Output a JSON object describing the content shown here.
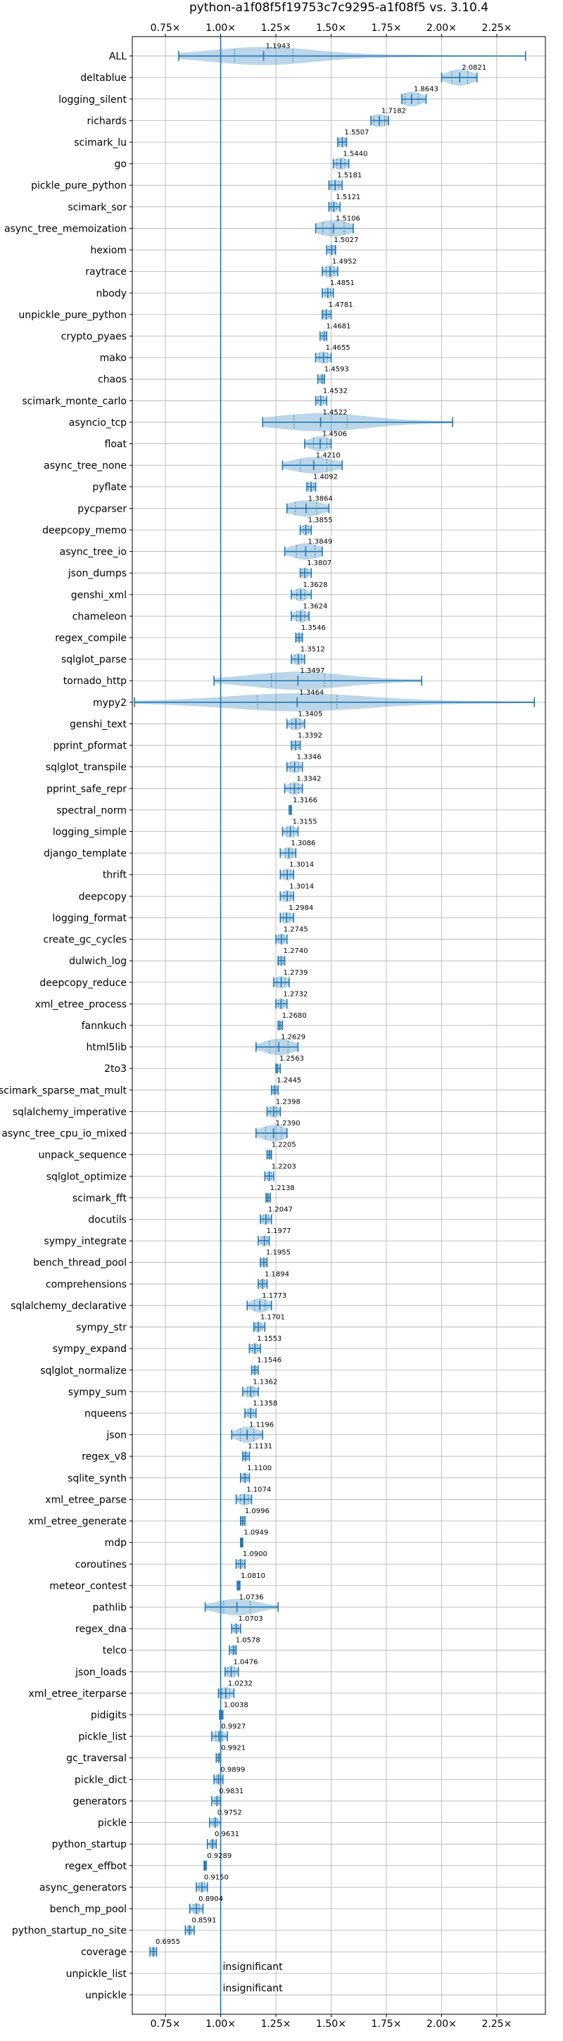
{
  "chart_data": {
    "type": "violin",
    "title": "python-a1f08f5f19753c7c9295-a1f08f5 vs. 3.10.4",
    "xlim": [
      0.6,
      2.47
    ],
    "reference_x": 1.0,
    "xticks": [
      0.75,
      1.0,
      1.25,
      1.5,
      1.75,
      2.0,
      2.25
    ],
    "xtick_labels": [
      "0.75×",
      "1.00×",
      "1.25×",
      "1.50×",
      "1.75×",
      "2.00×",
      "2.25×"
    ],
    "grid": true,
    "insignificant_label": "insignificant",
    "benchmarks": [
      {
        "name": "ALL",
        "value": 1.1943,
        "value_label": "1.1943",
        "min": 0.81,
        "max": 2.38,
        "spread": 0.22,
        "wide": true
      },
      {
        "name": "deltablue",
        "value": 2.0821,
        "value_label": "2.0821",
        "min": 2.0,
        "max": 2.16,
        "spread": 0.06
      },
      {
        "name": "logging_silent",
        "value": 1.8643,
        "value_label": "1.8643",
        "min": 1.82,
        "max": 1.93,
        "spread": 0.05
      },
      {
        "name": "richards",
        "value": 1.7182,
        "value_label": "1.7182",
        "min": 1.68,
        "max": 1.76,
        "spread": 0.04
      },
      {
        "name": "scimark_lu",
        "value": 1.5507,
        "value_label": "1.5507",
        "min": 1.53,
        "max": 1.57,
        "spread": 0.02
      },
      {
        "name": "go",
        "value": 1.544,
        "value_label": "1.5440",
        "min": 1.51,
        "max": 1.58,
        "spread": 0.03
      },
      {
        "name": "pickle_pure_python",
        "value": 1.5181,
        "value_label": "1.5181",
        "min": 1.49,
        "max": 1.55,
        "spread": 0.03
      },
      {
        "name": "scimark_sor",
        "value": 1.5121,
        "value_label": "1.5121",
        "min": 1.49,
        "max": 1.54,
        "spread": 0.02
      },
      {
        "name": "async_tree_memoization",
        "value": 1.5106,
        "value_label": "1.5106",
        "min": 1.43,
        "max": 1.6,
        "spread": 0.08
      },
      {
        "name": "hexiom",
        "value": 1.5027,
        "value_label": "1.5027",
        "min": 1.48,
        "max": 1.52,
        "spread": 0.02
      },
      {
        "name": "raytrace",
        "value": 1.4952,
        "value_label": "1.4952",
        "min": 1.46,
        "max": 1.53,
        "spread": 0.03
      },
      {
        "name": "nbody",
        "value": 1.4851,
        "value_label": "1.4851",
        "min": 1.46,
        "max": 1.51,
        "spread": 0.02
      },
      {
        "name": "unpickle_pure_python",
        "value": 1.4781,
        "value_label": "1.4781",
        "min": 1.46,
        "max": 1.5,
        "spread": 0.02
      },
      {
        "name": "crypto_pyaes",
        "value": 1.4681,
        "value_label": "1.4681",
        "min": 1.45,
        "max": 1.48,
        "spread": 0.015
      },
      {
        "name": "mako",
        "value": 1.4655,
        "value_label": "1.4655",
        "min": 1.43,
        "max": 1.5,
        "spread": 0.03
      },
      {
        "name": "chaos",
        "value": 1.4593,
        "value_label": "1.4593",
        "min": 1.44,
        "max": 1.47,
        "spread": 0.015
      },
      {
        "name": "scimark_monte_carlo",
        "value": 1.4532,
        "value_label": "1.4532",
        "min": 1.43,
        "max": 1.48,
        "spread": 0.02
      },
      {
        "name": "asyncio_tcp",
        "value": 1.4522,
        "value_label": "1.4522",
        "min": 1.19,
        "max": 2.05,
        "spread": 0.2,
        "wide": true
      },
      {
        "name": "float",
        "value": 1.4506,
        "value_label": "1.4506",
        "min": 1.38,
        "max": 1.5,
        "spread": 0.05
      },
      {
        "name": "async_tree_none",
        "value": 1.421,
        "value_label": "1.4210",
        "min": 1.28,
        "max": 1.55,
        "spread": 0.1
      },
      {
        "name": "pyflate",
        "value": 1.4092,
        "value_label": "1.4092",
        "min": 1.39,
        "max": 1.43,
        "spread": 0.02
      },
      {
        "name": "pycparser",
        "value": 1.3864,
        "value_label": "1.3864",
        "min": 1.3,
        "max": 1.49,
        "spread": 0.08
      },
      {
        "name": "deepcopy_memo",
        "value": 1.3855,
        "value_label": "1.3855",
        "min": 1.36,
        "max": 1.41,
        "spread": 0.02
      },
      {
        "name": "async_tree_io",
        "value": 1.3849,
        "value_label": "1.3849",
        "min": 1.29,
        "max": 1.46,
        "spread": 0.07
      },
      {
        "name": "json_dumps",
        "value": 1.3807,
        "value_label": "1.3807",
        "min": 1.36,
        "max": 1.41,
        "spread": 0.02
      },
      {
        "name": "genshi_xml",
        "value": 1.3628,
        "value_label": "1.3628",
        "min": 1.32,
        "max": 1.41,
        "spread": 0.03
      },
      {
        "name": "chameleon",
        "value": 1.3624,
        "value_label": "1.3624",
        "min": 1.32,
        "max": 1.4,
        "spread": 0.03
      },
      {
        "name": "regex_compile",
        "value": 1.3546,
        "value_label": "1.3546",
        "min": 1.34,
        "max": 1.37,
        "spread": 0.015
      },
      {
        "name": "sqlglot_parse",
        "value": 1.3512,
        "value_label": "1.3512",
        "min": 1.32,
        "max": 1.38,
        "spread": 0.025
      },
      {
        "name": "tornado_http",
        "value": 1.3497,
        "value_label": "1.3497",
        "min": 0.97,
        "max": 1.91,
        "spread": 0.2,
        "wide": true
      },
      {
        "name": "mypy2",
        "value": 1.3464,
        "value_label": "1.3464",
        "min": 0.61,
        "max": 2.42,
        "spread": 0.3,
        "wide": true
      },
      {
        "name": "genshi_text",
        "value": 1.3405,
        "value_label": "1.3405",
        "min": 1.3,
        "max": 1.38,
        "spread": 0.03
      },
      {
        "name": "pprint_pformat",
        "value": 1.3392,
        "value_label": "1.3392",
        "min": 1.32,
        "max": 1.36,
        "spread": 0.02
      },
      {
        "name": "sqlglot_transpile",
        "value": 1.3346,
        "value_label": "1.3346",
        "min": 1.3,
        "max": 1.37,
        "spread": 0.03
      },
      {
        "name": "pprint_safe_repr",
        "value": 1.3342,
        "value_label": "1.3342",
        "min": 1.29,
        "max": 1.37,
        "spread": 0.03
      },
      {
        "name": "spectral_norm",
        "value": 1.3166,
        "value_label": "1.3166",
        "min": 1.31,
        "max": 1.32,
        "spread": 0.008
      },
      {
        "name": "logging_simple",
        "value": 1.3155,
        "value_label": "1.3155",
        "min": 1.28,
        "max": 1.35,
        "spread": 0.025
      },
      {
        "name": "django_template",
        "value": 1.3086,
        "value_label": "1.3086",
        "min": 1.27,
        "max": 1.34,
        "spread": 0.025
      },
      {
        "name": "thrift",
        "value": 1.3014,
        "value_label": "1.3014",
        "min": 1.27,
        "max": 1.33,
        "spread": 0.025
      },
      {
        "name": "deepcopy",
        "value": 1.3014,
        "value_label": "1.3014",
        "min": 1.27,
        "max": 1.33,
        "spread": 0.025
      },
      {
        "name": "logging_format",
        "value": 1.2984,
        "value_label": "1.2984",
        "min": 1.27,
        "max": 1.33,
        "spread": 0.025
      },
      {
        "name": "create_gc_cycles",
        "value": 1.2745,
        "value_label": "1.2745",
        "min": 1.25,
        "max": 1.3,
        "spread": 0.02
      },
      {
        "name": "dulwich_log",
        "value": 1.274,
        "value_label": "1.2740",
        "min": 1.26,
        "max": 1.29,
        "spread": 0.015
      },
      {
        "name": "deepcopy_reduce",
        "value": 1.2739,
        "value_label": "1.2739",
        "min": 1.24,
        "max": 1.31,
        "spread": 0.03
      },
      {
        "name": "xml_etree_process",
        "value": 1.2732,
        "value_label": "1.2732",
        "min": 1.25,
        "max": 1.3,
        "spread": 0.02
      },
      {
        "name": "fannkuch",
        "value": 1.268,
        "value_label": "1.2680",
        "min": 1.26,
        "max": 1.28,
        "spread": 0.01
      },
      {
        "name": "html5lib",
        "value": 1.2629,
        "value_label": "1.2629",
        "min": 1.16,
        "max": 1.35,
        "spread": 0.07
      },
      {
        "name": "2to3",
        "value": 1.2563,
        "value_label": "1.2563",
        "min": 1.25,
        "max": 1.27,
        "spread": 0.01
      },
      {
        "name": "scimark_sparse_mat_mult",
        "value": 1.2445,
        "value_label": "1.2445",
        "min": 1.23,
        "max": 1.26,
        "spread": 0.012
      },
      {
        "name": "sqlalchemy_imperative",
        "value": 1.2398,
        "value_label": "1.2398",
        "min": 1.21,
        "max": 1.27,
        "spread": 0.025
      },
      {
        "name": "async_tree_cpu_io_mixed",
        "value": 1.239,
        "value_label": "1.2390",
        "min": 1.16,
        "max": 1.3,
        "spread": 0.06
      },
      {
        "name": "unpack_sequence",
        "value": 1.2205,
        "value_label": "1.2205",
        "min": 1.21,
        "max": 1.23,
        "spread": 0.01
      },
      {
        "name": "sqlglot_optimize",
        "value": 1.2203,
        "value_label": "1.2203",
        "min": 1.2,
        "max": 1.24,
        "spread": 0.015
      },
      {
        "name": "scimark_fft",
        "value": 1.2138,
        "value_label": "1.2138",
        "min": 1.205,
        "max": 1.225,
        "spread": 0.008
      },
      {
        "name": "docutils",
        "value": 1.2047,
        "value_label": "1.2047",
        "min": 1.18,
        "max": 1.23,
        "spread": 0.02
      },
      {
        "name": "sympy_integrate",
        "value": 1.1977,
        "value_label": "1.1977",
        "min": 1.17,
        "max": 1.22,
        "spread": 0.02
      },
      {
        "name": "bench_thread_pool",
        "value": 1.1955,
        "value_label": "1.1955",
        "min": 1.18,
        "max": 1.21,
        "spread": 0.015
      },
      {
        "name": "comprehensions",
        "value": 1.1894,
        "value_label": "1.1894",
        "min": 1.17,
        "max": 1.21,
        "spread": 0.015
      },
      {
        "name": "sqlalchemy_declarative",
        "value": 1.1773,
        "value_label": "1.1773",
        "min": 1.12,
        "max": 1.23,
        "spread": 0.04
      },
      {
        "name": "sympy_str",
        "value": 1.1701,
        "value_label": "1.1701",
        "min": 1.15,
        "max": 1.2,
        "spread": 0.02
      },
      {
        "name": "sympy_expand",
        "value": 1.1553,
        "value_label": "1.1553",
        "min": 1.13,
        "max": 1.18,
        "spread": 0.02
      },
      {
        "name": "sqlglot_normalize",
        "value": 1.1546,
        "value_label": "1.1546",
        "min": 1.14,
        "max": 1.17,
        "spread": 0.012
      },
      {
        "name": "sympy_sum",
        "value": 1.1362,
        "value_label": "1.1362",
        "min": 1.1,
        "max": 1.17,
        "spread": 0.025
      },
      {
        "name": "nqueens",
        "value": 1.1358,
        "value_label": "1.1358",
        "min": 1.11,
        "max": 1.16,
        "spread": 0.02
      },
      {
        "name": "json",
        "value": 1.1196,
        "value_label": "1.1196",
        "min": 1.05,
        "max": 1.19,
        "spread": 0.05
      },
      {
        "name": "regex_v8",
        "value": 1.1131,
        "value_label": "1.1131",
        "min": 1.1,
        "max": 1.13,
        "spread": 0.012
      },
      {
        "name": "sqlite_synth",
        "value": 1.11,
        "value_label": "1.1100",
        "min": 1.09,
        "max": 1.13,
        "spread": 0.015
      },
      {
        "name": "xml_etree_parse",
        "value": 1.1074,
        "value_label": "1.1074",
        "min": 1.07,
        "max": 1.14,
        "spread": 0.03
      },
      {
        "name": "xml_etree_generate",
        "value": 1.0996,
        "value_label": "1.0996",
        "min": 1.09,
        "max": 1.11,
        "spread": 0.01
      },
      {
        "name": "mdp",
        "value": 1.0949,
        "value_label": "1.0949",
        "min": 1.09,
        "max": 1.1,
        "spread": 0.006
      },
      {
        "name": "coroutines",
        "value": 1.09,
        "value_label": "1.0900",
        "min": 1.07,
        "max": 1.11,
        "spread": 0.015
      },
      {
        "name": "meteor_contest",
        "value": 1.081,
        "value_label": "1.0810",
        "min": 1.075,
        "max": 1.087,
        "spread": 0.005
      },
      {
        "name": "pathlib",
        "value": 1.0736,
        "value_label": "1.0736",
        "min": 0.93,
        "max": 1.26,
        "spread": 0.1
      },
      {
        "name": "regex_dna",
        "value": 1.0703,
        "value_label": "1.0703",
        "min": 1.05,
        "max": 1.09,
        "spread": 0.015
      },
      {
        "name": "telco",
        "value": 1.0578,
        "value_label": "1.0578",
        "min": 1.04,
        "max": 1.07,
        "spread": 0.012
      },
      {
        "name": "json_loads",
        "value": 1.0476,
        "value_label": "1.0476",
        "min": 1.02,
        "max": 1.08,
        "spread": 0.025
      },
      {
        "name": "xml_etree_iterparse",
        "value": 1.0232,
        "value_label": "1.0232",
        "min": 0.99,
        "max": 1.06,
        "spread": 0.03
      },
      {
        "name": "pidigits",
        "value": 1.0038,
        "value_label": "1.0038",
        "min": 0.995,
        "max": 1.01,
        "spread": 0.006
      },
      {
        "name": "pickle_list",
        "value": 0.9927,
        "value_label": "0.9927",
        "min": 0.96,
        "max": 1.03,
        "spread": 0.025
      },
      {
        "name": "gc_traversal",
        "value": 0.9921,
        "value_label": "0.9921",
        "min": 0.98,
        "max": 1.0,
        "spread": 0.01
      },
      {
        "name": "pickle_dict",
        "value": 0.9899,
        "value_label": "0.9899",
        "min": 0.97,
        "max": 1.01,
        "spread": 0.015
      },
      {
        "name": "generators",
        "value": 0.9831,
        "value_label": "0.9831",
        "min": 0.96,
        "max": 1.0,
        "spread": 0.015
      },
      {
        "name": "pickle",
        "value": 0.9752,
        "value_label": "0.9752",
        "min": 0.95,
        "max": 1.0,
        "spread": 0.015
      },
      {
        "name": "python_startup",
        "value": 0.9631,
        "value_label": "0.9631",
        "min": 0.94,
        "max": 0.98,
        "spread": 0.012
      },
      {
        "name": "regex_effbot",
        "value": 0.9289,
        "value_label": "0.9289",
        "min": 0.925,
        "max": 0.935,
        "spread": 0.004
      },
      {
        "name": "async_generators",
        "value": 0.915,
        "value_label": "0.9150",
        "min": 0.89,
        "max": 0.94,
        "spread": 0.02
      },
      {
        "name": "bench_mp_pool",
        "value": 0.8904,
        "value_label": "0.8904",
        "min": 0.86,
        "max": 0.92,
        "spread": 0.02
      },
      {
        "name": "python_startup_no_site",
        "value": 0.8591,
        "value_label": "0.8591",
        "min": 0.84,
        "max": 0.88,
        "spread": 0.012
      },
      {
        "name": "coverage",
        "value": 0.6955,
        "value_label": "0.6955",
        "min": 0.68,
        "max": 0.71,
        "spread": 0.01
      },
      {
        "name": "unpickle_list",
        "value": null,
        "insignificant": true
      },
      {
        "name": "unpickle",
        "value": null,
        "insignificant": true
      }
    ]
  }
}
